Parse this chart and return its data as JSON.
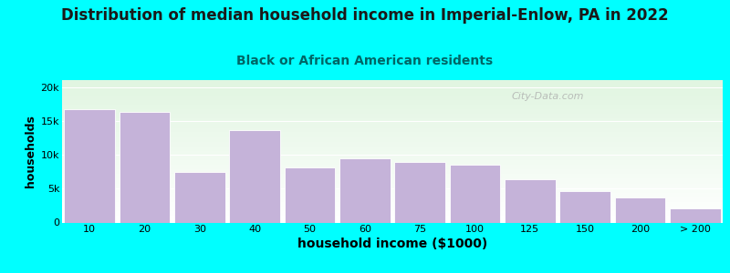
{
  "title": "Distribution of median household income in Imperial-Enlow, PA in 2022",
  "subtitle": "Black or African American residents",
  "xlabel": "household income ($1000)",
  "ylabel": "households",
  "background_color": "#00FFFF",
  "bar_color": "#c5b3d9",
  "bar_edge_color": "#ffffff",
  "categories": [
    "10",
    "20",
    "30",
    "40",
    "50",
    "60",
    "75",
    "100",
    "125",
    "150",
    "200",
    "> 200"
  ],
  "values": [
    16800,
    16300,
    7500,
    13600,
    8200,
    9500,
    9000,
    8500,
    6400,
    4700,
    3700,
    2100
  ],
  "ylim": [
    0,
    21000
  ],
  "yticks": [
    0,
    5000,
    10000,
    15000,
    20000
  ],
  "ytick_labels": [
    "0",
    "5k",
    "10k",
    "15k",
    "20k"
  ],
  "title_fontsize": 12,
  "subtitle_fontsize": 10,
  "xlabel_fontsize": 10,
  "ylabel_fontsize": 9,
  "watermark_text": "City-Data.com",
  "title_color": "#1a1a1a",
  "subtitle_color": "#006666",
  "tick_fontsize": 8
}
